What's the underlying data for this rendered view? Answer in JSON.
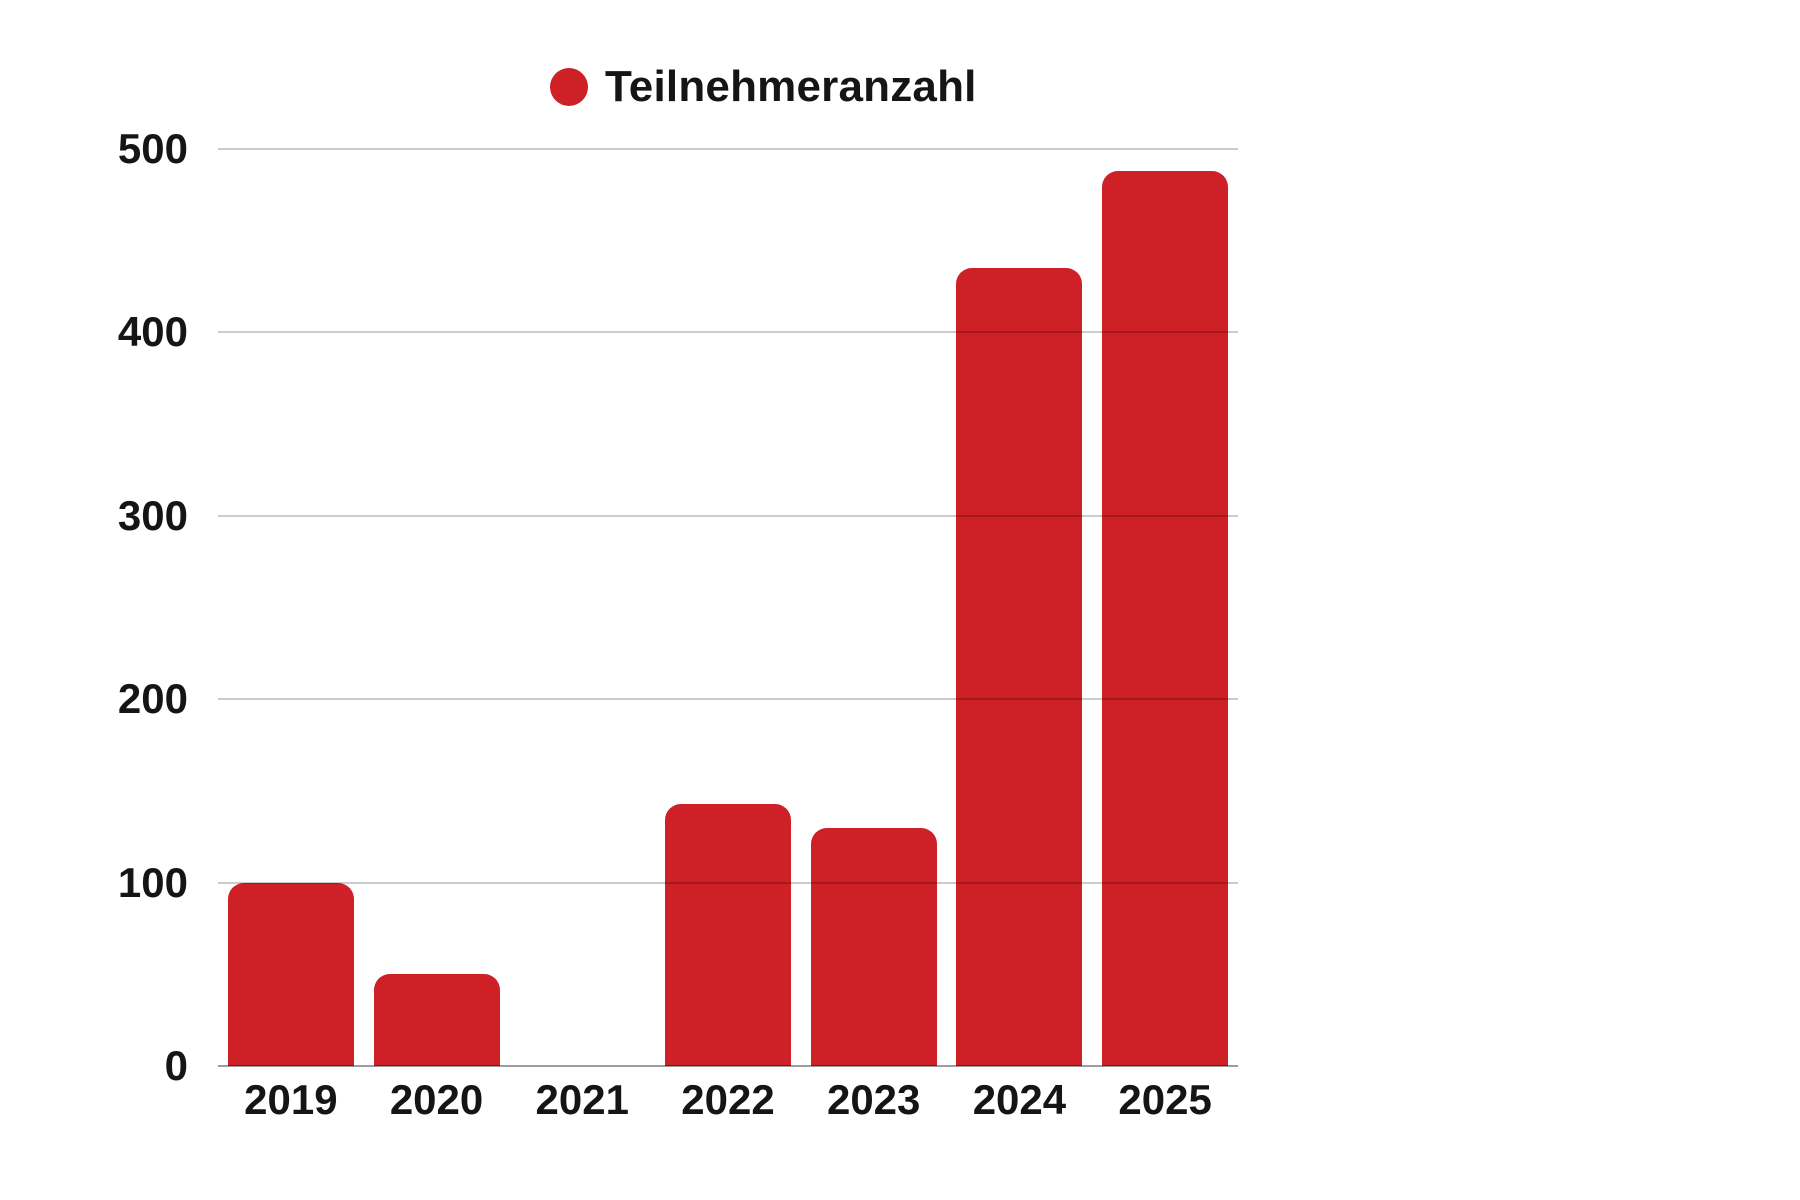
{
  "legend": {
    "label": "Teilnehmeranzahl"
  },
  "colors": {
    "bar": "#cd2027",
    "text": "#151515",
    "grid": "rgba(0,0,0,0.20)",
    "baseline": "rgba(0,0,0,0.38)",
    "background": "#ffffff"
  },
  "chart_data": {
    "type": "bar",
    "title": "",
    "xlabel": "",
    "ylabel": "",
    "categories": [
      "2019",
      "2020",
      "2021",
      "2022",
      "2023",
      "2024",
      "2025"
    ],
    "series": [
      {
        "name": "Teilnehmeranzahl",
        "values": [
          100,
          50,
          0,
          143,
          130,
          435,
          488
        ]
      }
    ],
    "ylim": [
      0,
      500
    ],
    "yticks": [
      0,
      100,
      200,
      300,
      400,
      500
    ],
    "grid": true,
    "legend_position": "top-center",
    "bar_corner_radius": 16
  }
}
